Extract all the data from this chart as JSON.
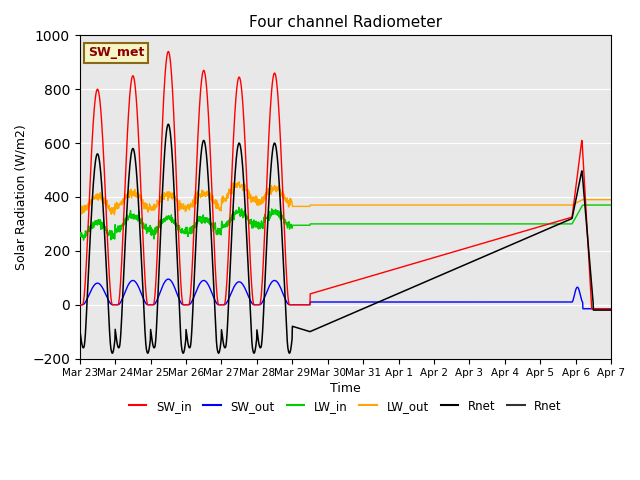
{
  "title": "Four channel Radiometer",
  "xlabel": "Time",
  "ylabel": "Solar Radiation (W/m2)",
  "ylim": [
    -200,
    1000
  ],
  "background_color": "#e8e8e8",
  "annotation_text": "SW_met",
  "annotation_color": "#8B0000",
  "annotation_bg": "#f5f5c8",
  "annotation_border": "#8B6914",
  "legend_entries": [
    "SW_in",
    "SW_out",
    "LW_in",
    "LW_out",
    "Rnet",
    "Rnet"
  ],
  "legend_colors": [
    "#ff0000",
    "#0000ff",
    "#00cc00",
    "#ffa500",
    "#000000",
    "#333333"
  ],
  "xtick_labels": [
    "Mar 23",
    "Mar 24",
    "Mar 25",
    "Mar 26",
    "Mar 27",
    "Mar 28",
    "Mar 29",
    "Mar 30",
    "Mar 31",
    "Apr 1",
    "Apr 2",
    "Apr 3",
    "Apr 4",
    "Apr 5",
    "Apr 6",
    "Apr 7"
  ],
  "n_points": 2000,
  "sw_in_peaks": [
    800,
    850,
    940,
    870,
    845,
    860
  ],
  "sw_out_peaks": [
    80,
    90,
    95,
    90,
    85,
    90
  ],
  "rnet_peaks": [
    620,
    640,
    730,
    670,
    660,
    660
  ]
}
